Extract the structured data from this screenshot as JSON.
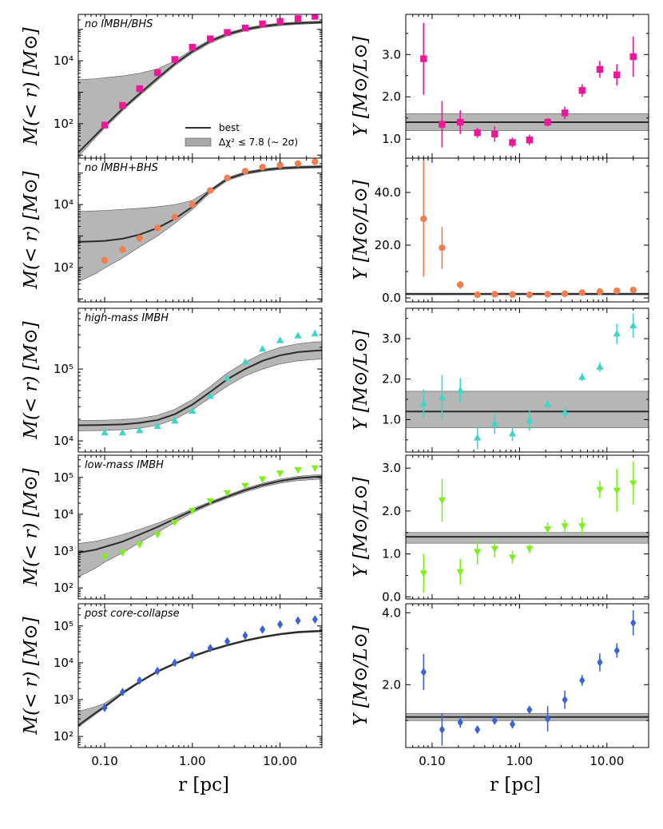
{
  "chart_data": {
    "type": "scatter",
    "figure": "Mass profiles and mass-to-light ratio profiles for five cluster models",
    "xlabel": "r [pc]",
    "xscale": "log",
    "x_tick_labels": [
      "0.10",
      "1.00",
      "10.00"
    ],
    "left_ylabel": "M(< r) [M⊙]",
    "right_ylabel": "Υ [M⊙/L⊙]",
    "legend": {
      "entries": [
        "best",
        "Δχ² ≤ 7.8 (∼ 2σ)"
      ],
      "location": "bottom-right of first left panel"
    },
    "rows": [
      {
        "label": "no IMBH/BHS",
        "color": "#f0169a",
        "marker": "square",
        "mass": {
          "yscale": "log",
          "ylim": [
            8,
            300000
          ],
          "tick_values": [
            100,
            10000
          ],
          "tick_labels": [
            "10²",
            "10⁴"
          ],
          "points_r": [
            0.1,
            0.16,
            0.25,
            0.4,
            0.63,
            1.0,
            1.6,
            2.5,
            4.0,
            6.3,
            10,
            16,
            25
          ],
          "points_M": [
            90,
            380,
            1300,
            4200,
            11000,
            27000,
            50000,
            80000,
            110000,
            150000,
            180000,
            220000,
            260000
          ],
          "best_r": [
            0.05,
            0.08,
            0.1,
            0.16,
            0.25,
            0.4,
            0.63,
            1.0,
            1.6,
            2.5,
            4.0,
            6.3,
            10,
            16,
            25,
            30
          ],
          "best_M": [
            12,
            45,
            85,
            300,
            900,
            2800,
            8000,
            20000,
            42000,
            70000,
            100000,
            125000,
            145000,
            158000,
            165000,
            168000
          ],
          "band_lo": [
            9,
            38,
            72,
            260,
            780,
            2400,
            7000,
            17500,
            37000,
            62000,
            90000,
            113000,
            132000,
            145000,
            152000,
            155000
          ],
          "band_hi": [
            2500,
            2700,
            2900,
            3300,
            4000,
            5500,
            10000,
            23000,
            47000,
            78000,
            110000,
            137000,
            158000,
            172000,
            180000,
            183000
          ]
        },
        "ml": {
          "yscale": "linear",
          "ylim": [
            0.55,
            3.95
          ],
          "tick_values": [
            1.0,
            2.0,
            3.0
          ],
          "tick_labels": [
            "1.0",
            "2.0",
            "3.0"
          ],
          "best": 1.4,
          "band": [
            1.2,
            1.6
          ],
          "points_r": [
            0.08,
            0.13,
            0.21,
            0.33,
            0.52,
            0.83,
            1.3,
            2.1,
            3.3,
            5.2,
            8.3,
            13,
            20
          ],
          "points_Y": [
            2.9,
            1.35,
            1.4,
            1.15,
            1.12,
            0.92,
            0.98,
            1.4,
            1.62,
            2.15,
            2.65,
            2.52,
            2.95
          ],
          "err": [
            0.85,
            0.55,
            0.28,
            0.12,
            0.18,
            0.12,
            0.12,
            0.1,
            0.15,
            0.15,
            0.2,
            0.25,
            0.48
          ]
        }
      },
      {
        "label": "no IMBH+BHS",
        "color": "#f07e4f",
        "marker": "circle",
        "mass": {
          "yscale": "log",
          "ylim": [
            8,
            300000
          ],
          "tick_values": [
            100,
            10000
          ],
          "tick_labels": [
            "10²",
            "10⁴"
          ],
          "points_r": [
            0.1,
            0.16,
            0.25,
            0.4,
            0.63,
            1.0,
            1.6,
            2.5,
            4.0,
            6.3,
            10,
            16,
            25
          ],
          "points_M": [
            170,
            370,
            850,
            1800,
            4000,
            10000,
            28000,
            70000,
            115000,
            155000,
            180000,
            200000,
            230000
          ],
          "best_r": [
            0.05,
            0.08,
            0.1,
            0.16,
            0.25,
            0.4,
            0.63,
            1.0,
            1.6,
            2.5,
            4.0,
            6.3,
            10,
            16,
            25,
            30
          ],
          "best_M": [
            650,
            680,
            700,
            820,
            1100,
            1800,
            3500,
            8500,
            28000,
            65000,
            100000,
            125000,
            143000,
            153000,
            158000,
            160000
          ],
          "band_lo": [
            35,
            65,
            95,
            200,
            450,
            1000,
            2500,
            7000,
            24000,
            58000,
            90000,
            113000,
            130000,
            140000,
            145000,
            147000
          ],
          "band_hi": [
            6000,
            6300,
            6500,
            7000,
            7600,
            8500,
            10000,
            13500,
            30000,
            72000,
            110000,
            137000,
            155000,
            166000,
            172000,
            175000
          ]
        },
        "ml": {
          "yscale": "linear",
          "ylim": [
            -1.5,
            53
          ],
          "tick_values": [
            0,
            20,
            40
          ],
          "tick_labels": [
            "0.0",
            "20.0",
            "40.0"
          ],
          "best": 1.5,
          "band": [
            1.2,
            1.8
          ],
          "points_r": [
            0.08,
            0.13,
            0.21,
            0.33,
            0.52,
            0.83,
            1.3,
            2.1,
            3.3,
            5.2,
            8.3,
            13,
            20
          ],
          "points_Y": [
            30,
            19,
            5,
            1.2,
            1.4,
            1.3,
            1.2,
            1.4,
            1.6,
            2.0,
            2.4,
            2.7,
            3.0
          ],
          "err": [
            22,
            8,
            1.5,
            0.3,
            0.3,
            0.3,
            0.3,
            0.3,
            0.3,
            0.3,
            0.4,
            0.4,
            0.5
          ]
        }
      },
      {
        "label": "high-mass IMBH",
        "color": "#3fd6c8",
        "marker": "triangle-up",
        "mass": {
          "yscale": "log",
          "ylim": [
            7000,
            700000
          ],
          "tick_values": [
            10000,
            100000
          ],
          "tick_labels": [
            "10⁴",
            "10⁵"
          ],
          "points_r": [
            0.1,
            0.16,
            0.25,
            0.4,
            0.63,
            1.0,
            1.6,
            2.5,
            4.0,
            6.3,
            10,
            16,
            25
          ],
          "points_M": [
            13000,
            13000,
            14000,
            16000,
            19000,
            26000,
            42000,
            75000,
            125000,
            190000,
            250000,
            290000,
            310000
          ],
          "best_r": [
            0.05,
            0.08,
            0.1,
            0.16,
            0.25,
            0.4,
            0.63,
            1.0,
            1.6,
            2.5,
            4.0,
            6.3,
            10,
            16,
            25,
            30
          ],
          "best_M": [
            16500,
            16600,
            16700,
            17000,
            17800,
            19500,
            23500,
            32000,
            48000,
            72000,
            100000,
            130000,
            155000,
            172000,
            180000,
            182000
          ],
          "band_lo": [
            13800,
            13900,
            14000,
            14300,
            15000,
            16500,
            20000,
            27000,
            40000,
            58000,
            80000,
            100000,
            118000,
            130000,
            136000,
            138000
          ],
          "band_hi": [
            19200,
            19300,
            19400,
            19800,
            20700,
            22700,
            27500,
            37500,
            57000,
            88000,
            125000,
            165000,
            200000,
            225000,
            238000,
            240000
          ]
        },
        "ml": {
          "yscale": "linear",
          "ylim": [
            0.2,
            3.75
          ],
          "tick_values": [
            1.0,
            2.0,
            3.0
          ],
          "tick_labels": [
            "1.0",
            "2.0",
            "3.0"
          ],
          "best": 1.2,
          "band": [
            0.8,
            1.7
          ],
          "points_r": [
            0.08,
            0.13,
            0.21,
            0.33,
            0.52,
            0.83,
            1.3,
            2.1,
            3.3,
            5.2,
            8.3,
            13,
            20
          ],
          "points_Y": [
            1.4,
            1.55,
            1.72,
            0.55,
            0.9,
            0.65,
            0.98,
            1.38,
            1.18,
            2.05,
            2.3,
            3.12,
            3.32
          ],
          "err": [
            0.35,
            0.55,
            0.3,
            0.28,
            0.25,
            0.18,
            0.25,
            0.1,
            0.12,
            0.1,
            0.12,
            0.25,
            0.3
          ]
        }
      },
      {
        "label": "low-mass IMBH",
        "color": "#7cf21a",
        "marker": "triangle-down",
        "mass": {
          "yscale": "log",
          "ylim": [
            50,
            400000
          ],
          "tick_values": [
            100,
            1000,
            10000,
            100000
          ],
          "tick_labels": [
            "10²",
            "10³",
            "10⁴",
            "10⁵"
          ],
          "points_r": [
            0.1,
            0.16,
            0.25,
            0.4,
            0.63,
            1.0,
            1.6,
            2.5,
            4.0,
            6.3,
            10,
            16,
            25
          ],
          "points_M": [
            700,
            900,
            1500,
            2800,
            6000,
            12500,
            23000,
            38000,
            60000,
            90000,
            130000,
            160000,
            180000
          ],
          "best_r": [
            0.05,
            0.08,
            0.1,
            0.16,
            0.25,
            0.4,
            0.63,
            1.0,
            1.6,
            2.5,
            4.0,
            6.3,
            10,
            16,
            25,
            30
          ],
          "best_M": [
            900,
            1100,
            1300,
            1800,
            2800,
            4500,
            7500,
            12500,
            20000,
            30000,
            45000,
            62000,
            80000,
            95000,
            103000,
            105000
          ],
          "band_lo": [
            200,
            350,
            500,
            900,
            1700,
            3200,
            6000,
            11000,
            18000,
            27000,
            40000,
            55000,
            70000,
            82000,
            88000,
            90000
          ],
          "band_hi": [
            1600,
            1850,
            2100,
            2800,
            3900,
            5700,
            8800,
            14000,
            22000,
            33000,
            50000,
            69000,
            90000,
            107000,
            117000,
            120000
          ]
        },
        "ml": {
          "yscale": "linear",
          "ylim": [
            -0.05,
            3.3
          ],
          "tick_values": [
            0,
            1.0,
            2.0,
            3.0
          ],
          "tick_labels": [
            "0.0",
            "1.0",
            "2.0",
            "3.0"
          ],
          "best": 1.4,
          "band": [
            1.25,
            1.5
          ],
          "points_r": [
            0.08,
            0.13,
            0.21,
            0.33,
            0.52,
            0.83,
            1.3,
            2.1,
            3.3,
            5.2,
            8.3,
            13,
            20
          ],
          "points_Y": [
            0.55,
            2.25,
            0.58,
            1.05,
            1.12,
            0.92,
            1.12,
            1.58,
            1.65,
            1.65,
            2.5,
            2.48,
            2.65
          ],
          "err": [
            0.45,
            0.5,
            0.3,
            0.3,
            0.2,
            0.15,
            0.1,
            0.15,
            0.15,
            0.2,
            0.2,
            0.5,
            0.5
          ]
        }
      },
      {
        "label": "post core-collapse",
        "color": "#3a63d6",
        "marker": "diamond",
        "mass": {
          "yscale": "log",
          "ylim": [
            50,
            400000
          ],
          "tick_values": [
            100,
            1000,
            10000,
            100000
          ],
          "tick_labels": [
            "10²",
            "10³",
            "10⁴",
            "10⁵"
          ],
          "points_r": [
            0.1,
            0.16,
            0.25,
            0.4,
            0.63,
            1.0,
            1.6,
            2.5,
            4.0,
            6.3,
            10,
            16,
            25
          ],
          "points_M": [
            600,
            1600,
            3300,
            6000,
            10000,
            16000,
            25000,
            38000,
            55000,
            80000,
            110000,
            140000,
            150000
          ],
          "best_r": [
            0.05,
            0.08,
            0.1,
            0.16,
            0.25,
            0.4,
            0.63,
            1.0,
            1.6,
            2.5,
            4.0,
            6.3,
            10,
            16,
            25,
            30
          ],
          "best_M": [
            200,
            450,
            650,
            1500,
            3000,
            5800,
            9500,
            15000,
            22000,
            30000,
            40000,
            50000,
            60000,
            68000,
            72000,
            73000
          ],
          "band_lo": [
            180,
            410,
            600,
            1420,
            2850,
            5500,
            9000,
            14200,
            20800,
            28500,
            38000,
            47500,
            57000,
            64500,
            68000,
            69000
          ],
          "band_hi": [
            480,
            650,
            800,
            1650,
            3200,
            6100,
            10000,
            15800,
            23200,
            31500,
            42000,
            52500,
            63000,
            71500,
            76000,
            77000
          ]
        },
        "ml": {
          "yscale": "linear",
          "ylim": [
            0.25,
            4.25
          ],
          "tick_values": [
            2.0,
            4.0
          ],
          "tick_labels": [
            "2.0",
            "4.0"
          ],
          "best": 1.1,
          "band": [
            1.0,
            1.2
          ],
          "points_r": [
            0.08,
            0.13,
            0.21,
            0.33,
            0.52,
            0.83,
            1.3,
            2.1,
            3.3,
            5.2,
            8.3,
            13,
            20
          ],
          "points_Y": [
            2.35,
            0.75,
            0.95,
            0.75,
            1.0,
            0.9,
            1.3,
            1.05,
            1.58,
            2.12,
            2.62,
            2.95,
            3.72
          ],
          "err": [
            0.5,
            0.45,
            0.15,
            0.1,
            0.1,
            0.12,
            0.1,
            0.35,
            0.25,
            0.15,
            0.25,
            0.2,
            0.35
          ]
        }
      }
    ]
  }
}
